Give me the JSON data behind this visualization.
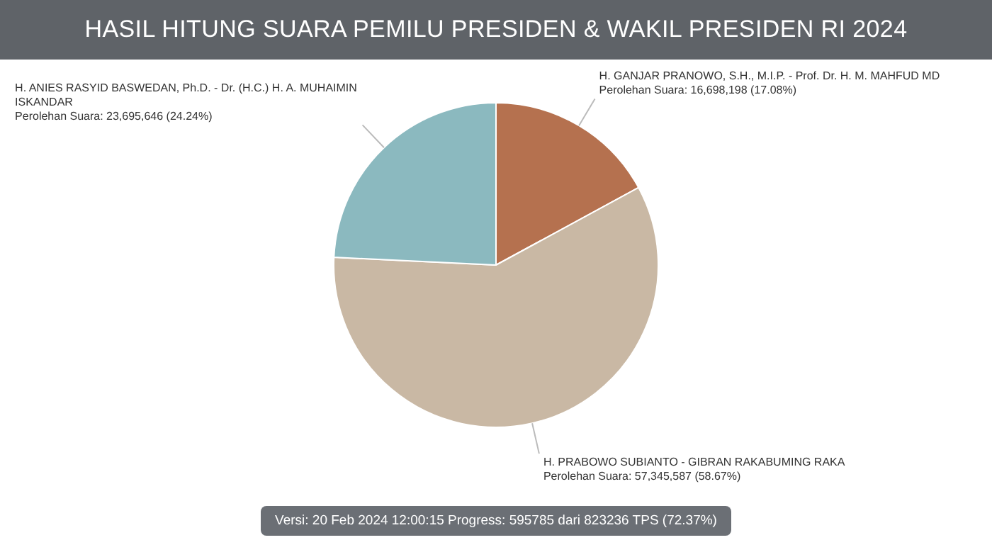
{
  "chart_data": {
    "type": "pie",
    "title": "HASIL HITUNG SUARA PEMILU PRESIDEN & WAKIL PRESIDEN RI 2024",
    "categories": [
      "H. GANJAR PRANOWO, S.H., M.I.P. - Prof. Dr. H. M. MAHFUD MD",
      "H. PRABOWO SUBIANTO - GIBRAN RAKABUMING RAKA",
      "H. ANIES RASYID BASWEDAN, Ph.D. - Dr. (H.C.) H. A. MUHAIMIN ISKANDAR"
    ],
    "values": [
      16698198,
      57345587,
      23695646
    ],
    "colors": [
      "#b5714f",
      "#c9b8a4",
      "#8bb9bf"
    ],
    "value_labels": [
      "Perolehan Suara: 16,698,198 (17.08%)",
      "Perolehan Suara: 57,345,587 (58.67%)",
      "Perolehan Suara: 23,695,646 (24.24%)"
    ],
    "legend": false,
    "annotations": [
      "Versi: 20 Feb 2024 12:00:15 Progress: 595785 dari 823236 TPS (72.37%)"
    ]
  }
}
